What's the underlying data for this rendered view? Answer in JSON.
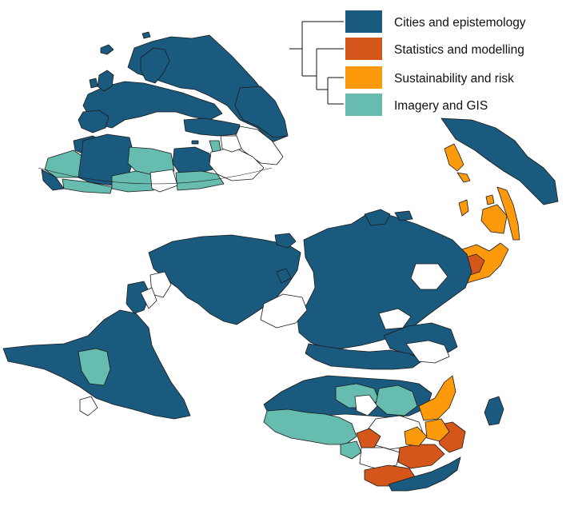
{
  "colors": {
    "cities": "#1a5a7e",
    "statistics": "#d4561b",
    "sustainability": "#fc9a0c",
    "imagery": "#66bcae",
    "none": "#ffffff",
    "border": "#1a1a1a"
  },
  "legend": {
    "items": [
      {
        "label": "Cities and epistemology",
        "color": "#1a5a7e"
      },
      {
        "label": "Statistics and modelling",
        "color": "#d4561b"
      },
      {
        "label": "Sustainability and risk",
        "color": "#fc9a0c"
      },
      {
        "label": "Imagery and GIS",
        "color": "#66bcae"
      }
    ]
  }
}
